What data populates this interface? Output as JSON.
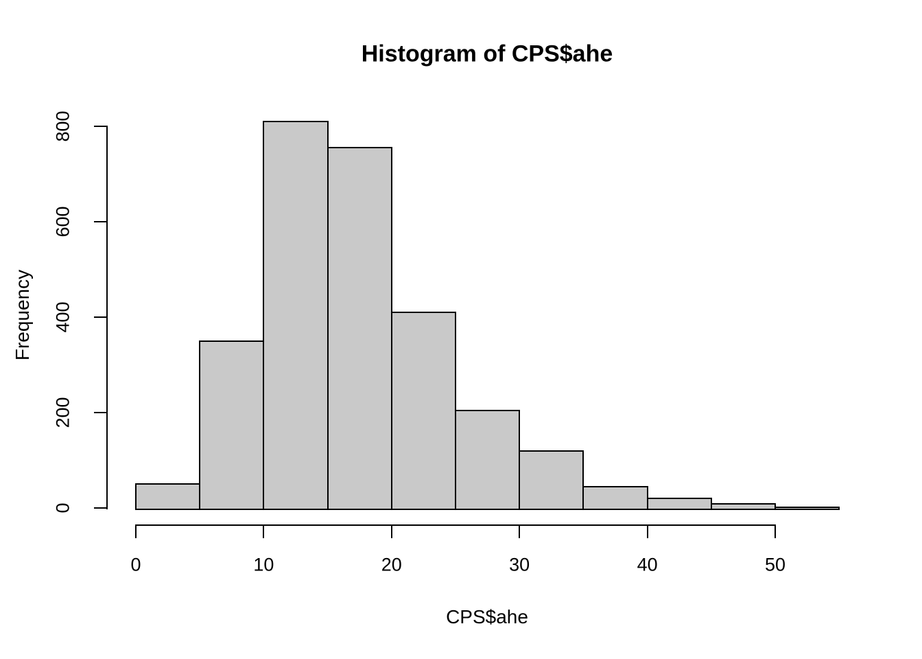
{
  "chart_data": {
    "type": "bar",
    "subtype": "histogram",
    "title": "Histogram of CPS$ahe",
    "xlabel": "CPS$ahe",
    "ylabel": "Frequency",
    "bin_edges": [
      0,
      5,
      10,
      15,
      20,
      25,
      30,
      35,
      40,
      45,
      50,
      55
    ],
    "counts": [
      50,
      350,
      810,
      755,
      410,
      205,
      120,
      45,
      20,
      8,
      2
    ],
    "x_ticks": [
      0,
      10,
      20,
      30,
      40,
      50
    ],
    "y_ticks": [
      0,
      200,
      400,
      600,
      800
    ],
    "xlim": [
      0,
      55
    ],
    "ylim": [
      0,
      800
    ],
    "grid": false,
    "legend": "none",
    "bar_fill": "#c9c9c9",
    "bar_border": "#000000",
    "axis_color": "#000000",
    "background": "#ffffff",
    "text_color": "#000000"
  }
}
